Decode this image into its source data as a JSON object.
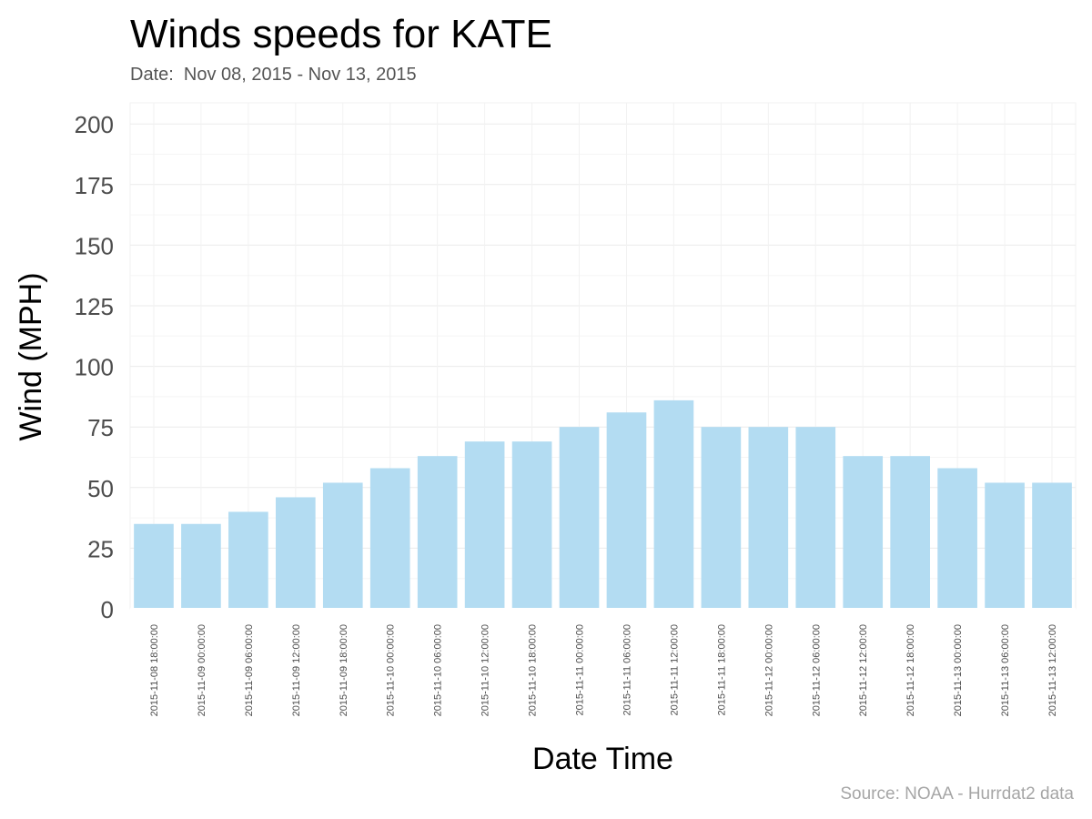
{
  "chart_data": {
    "type": "bar",
    "title": "Winds speeds for KATE",
    "subtitle": "Date:  Nov 08, 2015 - Nov 13, 2015",
    "xlabel": "Date Time",
    "ylabel": "Wind (MPH)",
    "caption": "Source: NOAA - Hurrdat2 data",
    "ylim": [
      0,
      210
    ],
    "yticks": [
      0,
      25,
      50,
      75,
      100,
      125,
      150,
      175,
      200
    ],
    "grid": true,
    "bar_color": "#b3dcf2",
    "categories": [
      "2015-11-08 18:00:00",
      "2015-11-09 00:00:00",
      "2015-11-09 06:00:00",
      "2015-11-09 12:00:00",
      "2015-11-09 18:00:00",
      "2015-11-10 00:00:00",
      "2015-11-10 06:00:00",
      "2015-11-10 12:00:00",
      "2015-11-10 18:00:00",
      "2015-11-11 00:00:00",
      "2015-11-11 06:00:00",
      "2015-11-11 12:00:00",
      "2015-11-11 18:00:00",
      "2015-11-12 00:00:00",
      "2015-11-12 06:00:00",
      "2015-11-12 12:00:00",
      "2015-11-12 18:00:00",
      "2015-11-13 00:00:00",
      "2015-11-13 06:00:00",
      "2015-11-13 12:00:00"
    ],
    "values": [
      35,
      35,
      40,
      46,
      52,
      58,
      63,
      69,
      69,
      75,
      81,
      86,
      75,
      75,
      75,
      63,
      63,
      58,
      52,
      52
    ]
  }
}
